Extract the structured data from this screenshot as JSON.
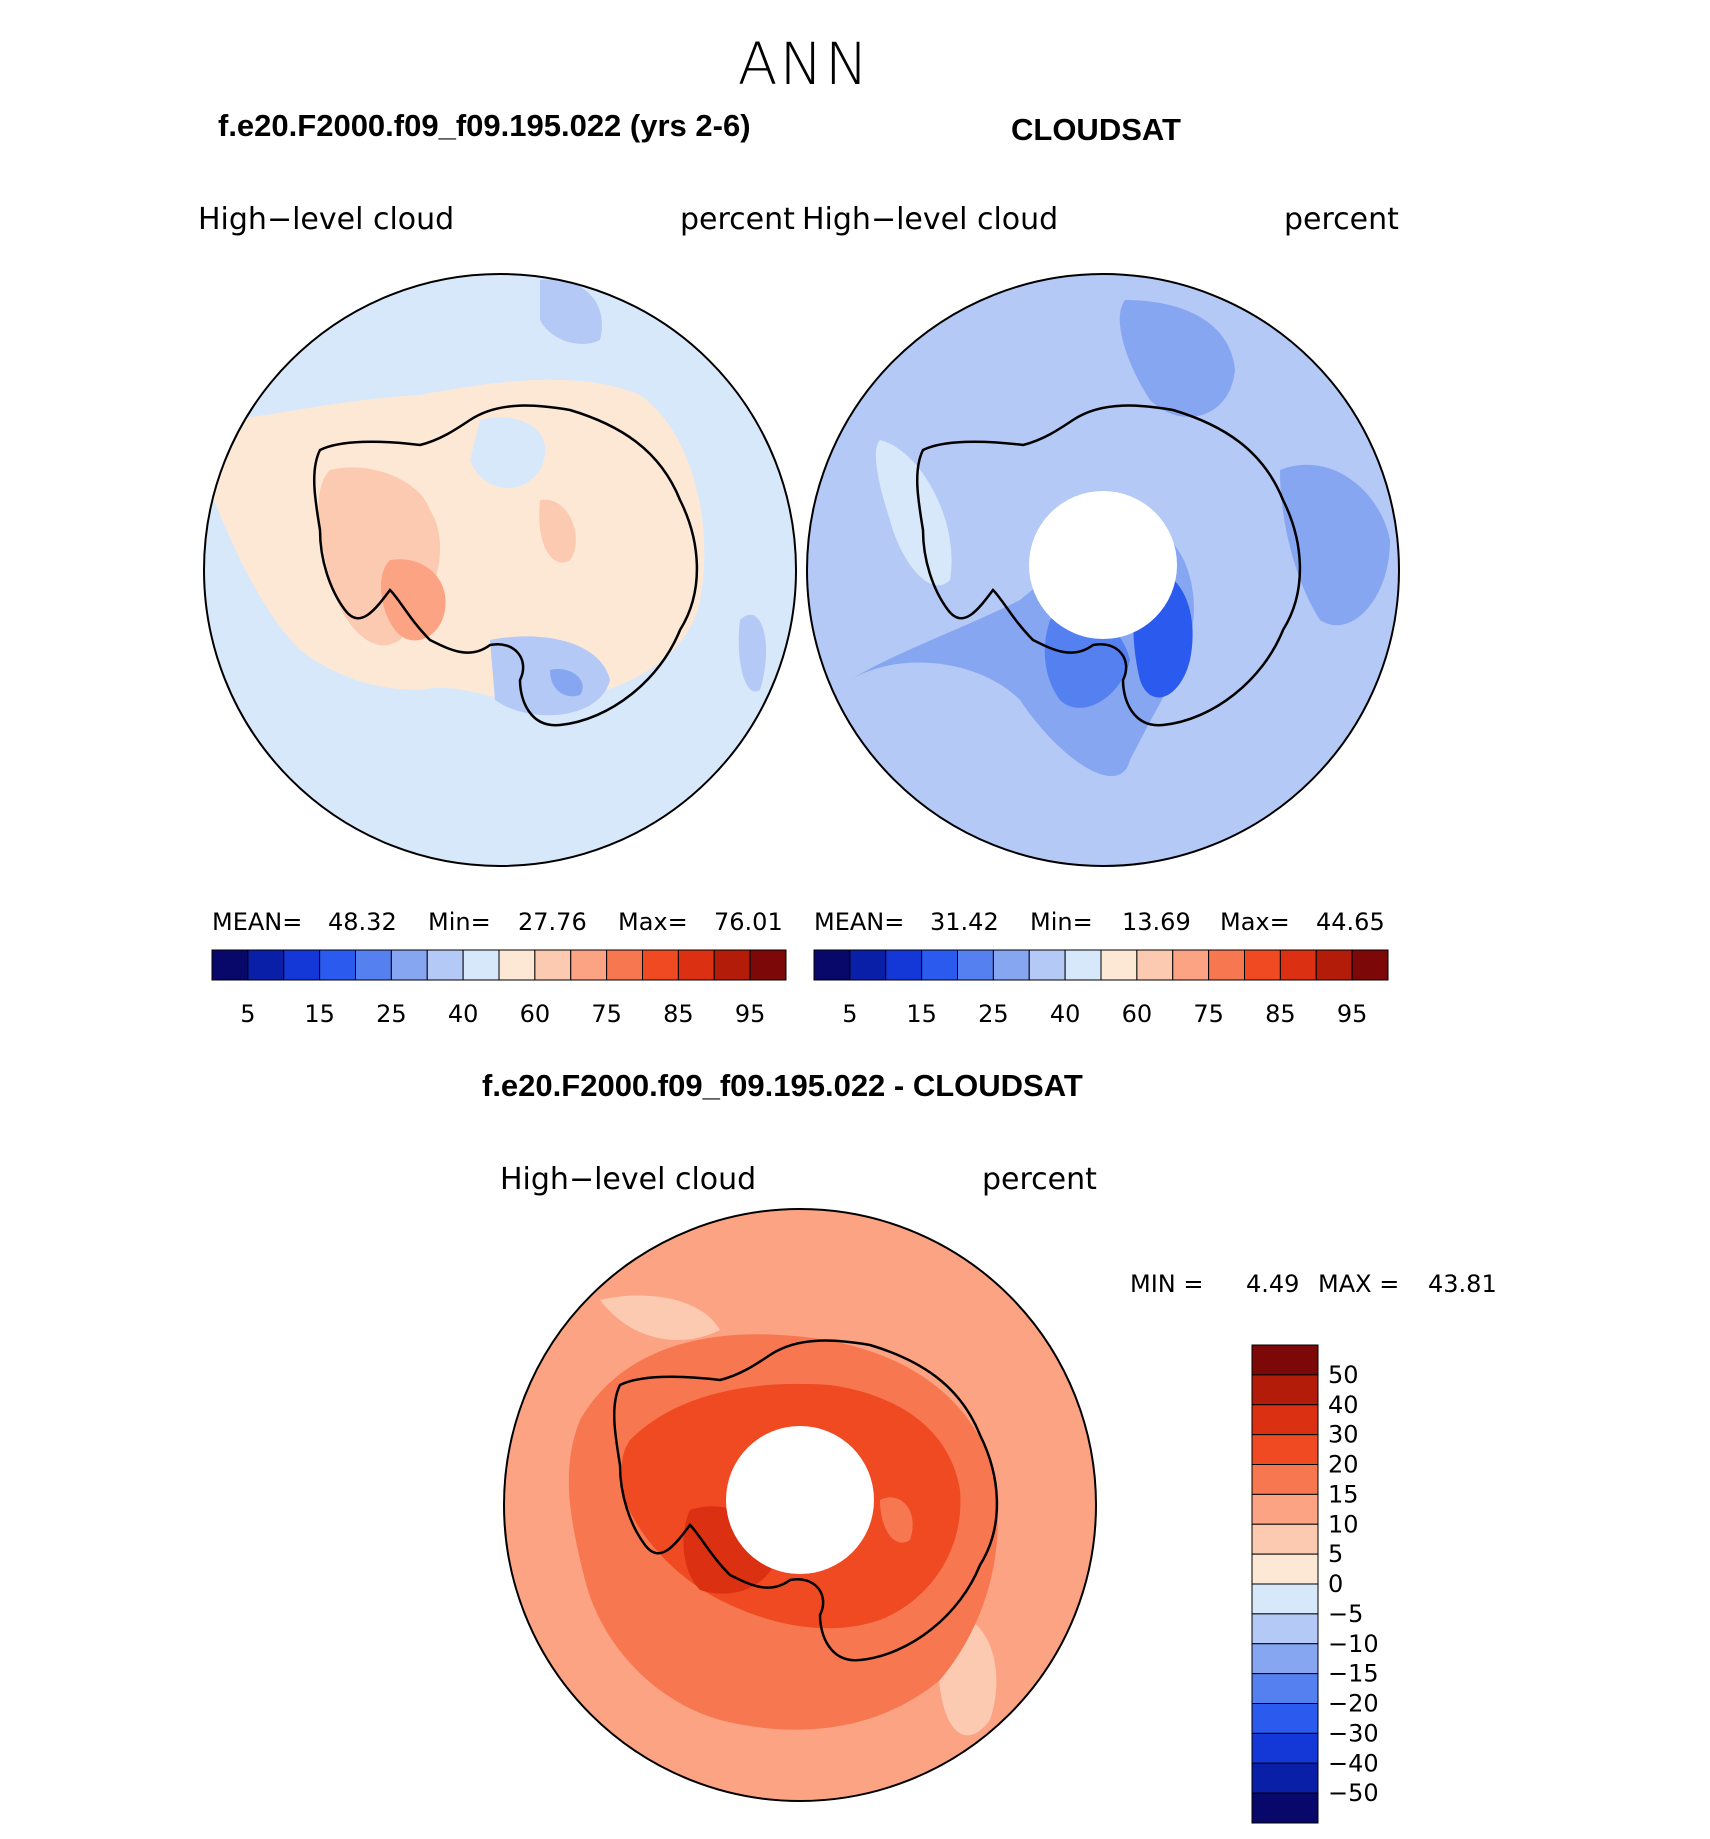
{
  "season": "ANN",
  "panels": [
    {
      "title": "f.e20.F2000.f09_f09.195.022 (yrs 2-6)",
      "left_label": "High−level cloud",
      "right_label": "percent",
      "mean_label": "MEAN=",
      "mean": "48.32",
      "min_label": "Min=",
      "min": "27.76",
      "max_label": "Max=",
      "max": "76.01"
    },
    {
      "title": "CLOUDSAT",
      "left_label": "High−level cloud",
      "right_label": "percent",
      "mean_label": "MEAN=",
      "mean": "31.42",
      "min_label": "Min=",
      "min": "13.69",
      "max_label": "Max=",
      "max": "44.65"
    },
    {
      "title": "f.e20.F2000.f09_f09.195.022 - CLOUDSAT",
      "left_label": "High−level cloud",
      "right_label": "percent",
      "min_label": "MIN =",
      "min": "4.49",
      "max_label": "MAX =",
      "max": "43.81"
    }
  ],
  "abs_colorbar": {
    "labels": [
      "5",
      "15",
      "25",
      "40",
      "60",
      "75",
      "85",
      "95"
    ],
    "colors": [
      "#08086b",
      "#0a1fa8",
      "#1438d8",
      "#2a5aee",
      "#5580ef",
      "#86a6f2",
      "#b4c9f6",
      "#d8e8fb",
      "#fde8d6",
      "#fccab0",
      "#fba383",
      "#f77850",
      "#ef4a22",
      "#dc3012",
      "#b41c0a",
      "#7c0808"
    ]
  },
  "diff_colorbar": {
    "labels": [
      "50",
      "40",
      "30",
      "20",
      "15",
      "10",
      "5",
      "0",
      "−5",
      "−10",
      "−15",
      "−20",
      "−30",
      "−40",
      "−50"
    ],
    "colors": [
      "#7c0808",
      "#b41c0a",
      "#dc3012",
      "#ef4a22",
      "#f77850",
      "#fba383",
      "#fccab0",
      "#fde8d6",
      "#d8e8fb",
      "#b4c9f6",
      "#86a6f2",
      "#5580ef",
      "#2a5aee",
      "#1438d8",
      "#0a1fa8",
      "#08086b"
    ]
  }
}
